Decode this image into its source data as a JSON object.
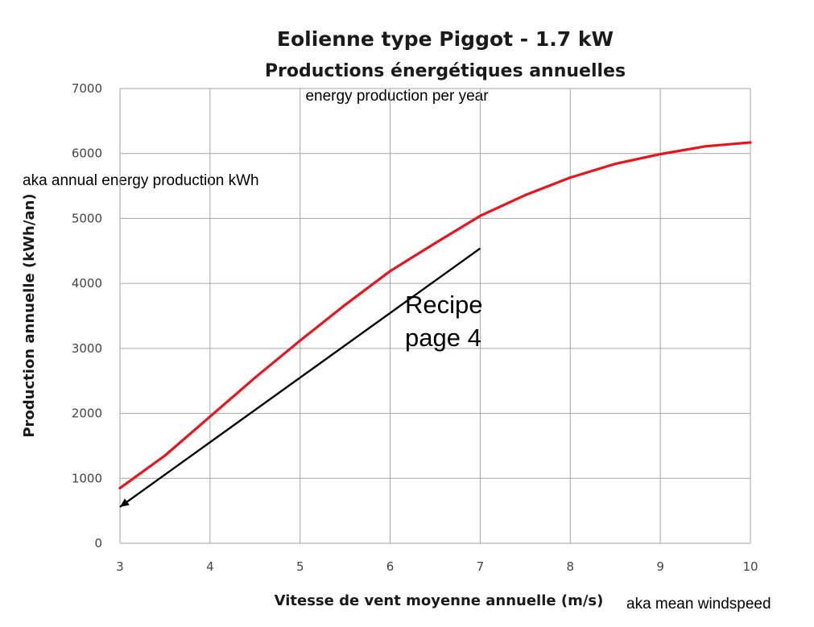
{
  "chart_data": {
    "type": "line",
    "title": "Eolienne type Piggot - 1.7 kW",
    "subtitle": "Productions énergétiques annuelles",
    "xlabel": "Vitesse de vent moyenne annuelle (m/s)",
    "ylabel": "Production annuelle (kWh/an)",
    "xlim": [
      3,
      10
    ],
    "ylim": [
      0,
      7000
    ],
    "x_ticks": [
      "3",
      "4",
      "5",
      "6",
      "7",
      "8",
      "9",
      "10"
    ],
    "y_ticks": [
      "0",
      "1000",
      "2000",
      "3000",
      "4000",
      "5000",
      "6000",
      "7000"
    ],
    "grid": true,
    "series": [
      {
        "color": "#e8141e",
        "x": [
          3,
          3.5,
          4,
          4.5,
          5,
          5.5,
          6,
          6.5,
          7,
          7.5,
          8,
          8.5,
          9,
          9.5,
          10
        ],
        "values": [
          850,
          1350,
          1950,
          2550,
          3120,
          3670,
          4190,
          4620,
          5040,
          5360,
          5630,
          5840,
          5990,
          6110,
          6170
        ]
      }
    ],
    "arrow": {
      "from": {
        "x": 7,
        "y": 4540
      },
      "to": {
        "x": 3,
        "y": 560
      },
      "color": "#000000"
    },
    "annotations": {
      "english_subtitle": "energy production per year",
      "ylabel_note": "aka annual energy production kWh",
      "xlabel_note": "aka mean windspeed",
      "recipe_line1": "Recipe",
      "recipe_line2": "page 4"
    }
  }
}
